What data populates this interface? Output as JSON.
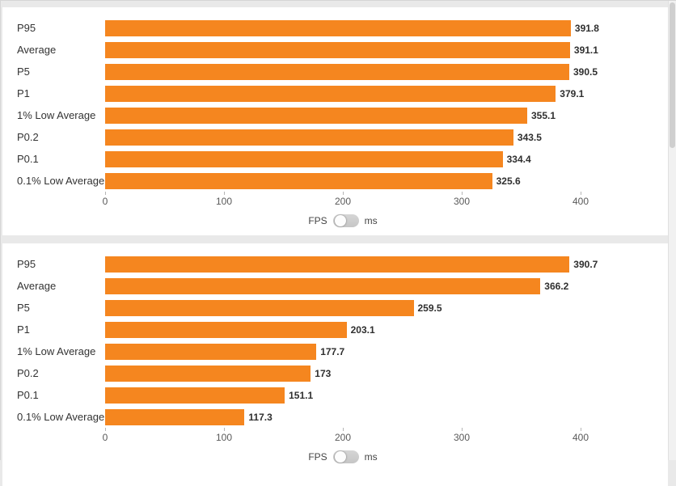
{
  "colors": {
    "bar": "#f5861f"
  },
  "chart_data": [
    {
      "type": "bar",
      "orientation": "horizontal",
      "title": "",
      "categories": [
        "P95",
        "Average",
        "P5",
        "P1",
        "1% Low Average",
        "P0.2",
        "P0.1",
        "0.1% Low Average"
      ],
      "values": [
        391.8,
        391.1,
        390.5,
        379.1,
        355.1,
        343.5,
        334.4,
        325.6
      ],
      "value_labels": [
        "391.8",
        "391.1",
        "390.5",
        "379.1",
        "355.1",
        "343.5",
        "334.4",
        "325.6"
      ],
      "xlim": [
        0,
        400
      ],
      "x_ticks": [
        0,
        100,
        200,
        300,
        400
      ],
      "grid": false,
      "unit_toggle": {
        "left": "FPS",
        "right": "ms",
        "selected": "FPS"
      }
    },
    {
      "type": "bar",
      "orientation": "horizontal",
      "title": "",
      "categories": [
        "P95",
        "Average",
        "P5",
        "P1",
        "1% Low Average",
        "P0.2",
        "P0.1",
        "0.1% Low Average"
      ],
      "values": [
        390.7,
        366.2,
        259.5,
        203.1,
        177.7,
        173,
        151.1,
        117.3
      ],
      "value_labels": [
        "390.7",
        "366.2",
        "259.5",
        "203.1",
        "177.7",
        "173",
        "151.1",
        "117.3"
      ],
      "xlim": [
        0,
        400
      ],
      "x_ticks": [
        0,
        100,
        200,
        300,
        400
      ],
      "grid": false,
      "unit_toggle": {
        "left": "FPS",
        "right": "ms",
        "selected": "FPS"
      }
    }
  ]
}
